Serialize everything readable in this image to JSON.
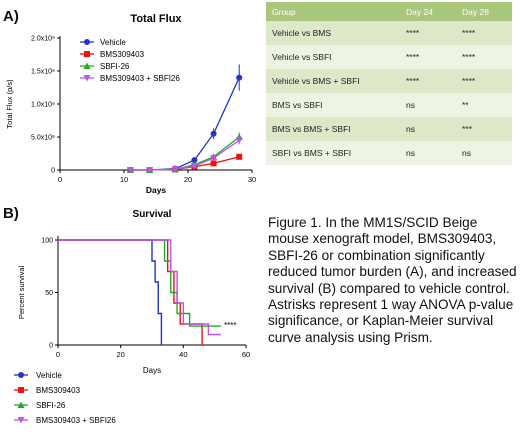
{
  "chart_data": [
    {
      "type": "line",
      "panel": "A)",
      "title": "Total Flux",
      "xlabel": "Days",
      "ylabel": "Total Flux (p/s)",
      "xlim": [
        0,
        30
      ],
      "ylim": [
        0,
        2000000000
      ],
      "xticks": [
        "0",
        "10",
        "20",
        "30"
      ],
      "yticks": [
        "0",
        "5.0x10⁸",
        "1.0x10⁹",
        "1.5x10⁹",
        "2.0x10⁹"
      ],
      "x": [
        11,
        14,
        18,
        21,
        24,
        28
      ],
      "series": [
        {
          "name": "Vehicle",
          "color": "#2233cc",
          "values": [
            0,
            0,
            20000000,
            150000000,
            550000000,
            1400000000
          ],
          "err": [
            0,
            0,
            5000000,
            30000000,
            80000000,
            200000000
          ]
        },
        {
          "name": "BMS309403",
          "color": "#ee1111",
          "values": [
            0,
            0,
            10000000,
            50000000,
            100000000,
            200000000
          ],
          "err": [
            0,
            0,
            0,
            10000000,
            15000000,
            30000000
          ]
        },
        {
          "name": "SBFI-26",
          "color": "#22aa22",
          "values": [
            0,
            0,
            10000000,
            80000000,
            200000000,
            500000000
          ],
          "err": [
            0,
            0,
            0,
            15000000,
            30000000,
            70000000
          ]
        },
        {
          "name": "BMS309403 + SBFI26",
          "color": "#bb55ee",
          "values": [
            0,
            0,
            10000000,
            60000000,
            180000000,
            450000000
          ],
          "err": [
            0,
            0,
            0,
            10000000,
            25000000,
            60000000
          ]
        }
      ]
    },
    {
      "type": "line",
      "panel": "B)",
      "title": "Survival",
      "xlabel": "Days",
      "ylabel": "Percent survival",
      "xlim": [
        0,
        60
      ],
      "ylim": [
        0,
        100
      ],
      "xticks": [
        "0",
        "20",
        "40",
        "60"
      ],
      "yticks": [
        "0",
        "50",
        "100"
      ],
      "annotation": "****",
      "series": [
        {
          "name": "Vehicle",
          "color": "#2233cc",
          "steps": [
            [
              0,
              100
            ],
            [
              30,
              100
            ],
            [
              30,
              80
            ],
            [
              31,
              80
            ],
            [
              31,
              60
            ],
            [
              32,
              60
            ],
            [
              32,
              30
            ],
            [
              33,
              30
            ],
            [
              33,
              0
            ]
          ]
        },
        {
          "name": "BMS309403",
          "color": "#ee1111",
          "steps": [
            [
              0,
              100
            ],
            [
              35,
              100
            ],
            [
              35,
              70
            ],
            [
              37,
              70
            ],
            [
              37,
              40
            ],
            [
              39,
              40
            ],
            [
              39,
              20
            ],
            [
              46,
              20
            ],
            [
              46,
              0
            ]
          ]
        },
        {
          "name": "SBFI-26",
          "color": "#22aa22",
          "steps": [
            [
              0,
              100
            ],
            [
              34,
              100
            ],
            [
              34,
              80
            ],
            [
              36,
              80
            ],
            [
              36,
              50
            ],
            [
              38,
              50
            ],
            [
              38,
              30
            ],
            [
              42,
              30
            ],
            [
              42,
              18
            ],
            [
              52,
              18
            ]
          ]
        },
        {
          "name": "BMS309403 + SBFI26",
          "color": "#bb55ee",
          "steps": [
            [
              0,
              100
            ],
            [
              36,
              100
            ],
            [
              36,
              70
            ],
            [
              38,
              70
            ],
            [
              38,
              40
            ],
            [
              40,
              40
            ],
            [
              40,
              20
            ],
            [
              48,
              20
            ],
            [
              48,
              10
            ],
            [
              52,
              10
            ]
          ]
        }
      ]
    }
  ],
  "table": {
    "headers": [
      "Group",
      "Day 24",
      "Day 28"
    ],
    "rows": [
      [
        "Vehicle vs BMS",
        "****",
        "****"
      ],
      [
        "Vehicle vs SBFI",
        "****",
        "****"
      ],
      [
        "Vehicle vs BMS + SBFI",
        "****",
        "****"
      ],
      [
        "BMS vs SBFI",
        "ns",
        "**"
      ],
      [
        "BMS vs BMS + SBFI",
        "ns",
        "***"
      ],
      [
        "SBFI vs BMS + SBFI",
        "ns",
        "ns"
      ]
    ]
  },
  "caption": "Figure 1. In the MM1S/SCID Beige mouse xenograft model, BMS309403, SBFI-26 or combination significantly reduced tumor burden (A), and increased survival (B) compared to vehicle control. Astrisks represent 1 way ANOVA p-value significance, or Kaplan-Meier survival curve analysis using Prism."
}
